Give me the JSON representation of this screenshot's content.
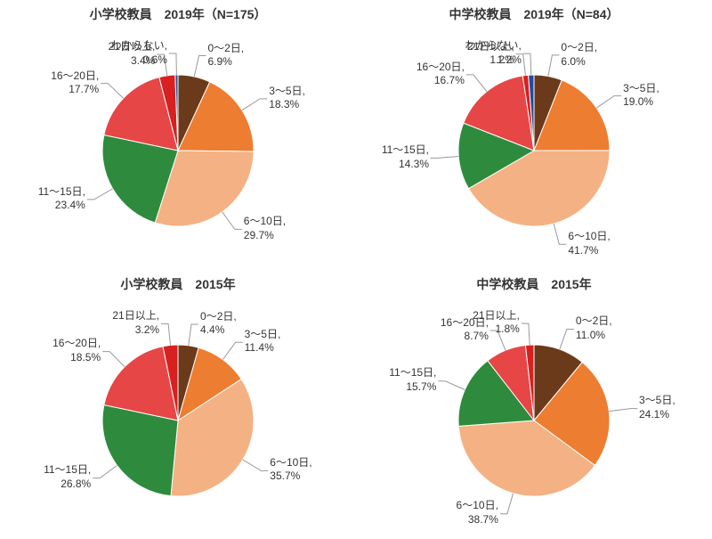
{
  "background_color": "#ffffff",
  "text_color": "#333333",
  "title_fontsize": 14,
  "label_fontsize": 12,
  "pie_radius": 85,
  "charts": [
    {
      "title": "小学校教員　2019年（N=175）",
      "type": "pie",
      "slices": [
        {
          "label": "0～2日",
          "value": 6.9,
          "value_str": "6.9%",
          "color": "#6b3a1a"
        },
        {
          "label": "3～5日",
          "value": 18.3,
          "value_str": "18.3%",
          "color": "#ed7d31"
        },
        {
          "label": "6～10日",
          "value": 29.7,
          "value_str": "29.7%",
          "color": "#f4b183"
        },
        {
          "label": "11～15日",
          "value": 23.4,
          "value_str": "23.4%",
          "color": "#2e8b3d"
        },
        {
          "label": "16～20日",
          "value": 17.7,
          "value_str": "17.7%",
          "color": "#e64646"
        },
        {
          "label": "21日以上",
          "value": 3.4,
          "value_str": "3.4%",
          "color": "#d82020"
        },
        {
          "label": "わからない",
          "value": 0.6,
          "value_str": "0.6%",
          "color": "#1f4e9e"
        }
      ]
    },
    {
      "title": "中学校教員　2019年（N=84）",
      "type": "pie",
      "slices": [
        {
          "label": "0～2日",
          "value": 6.0,
          "value_str": "6.0%",
          "color": "#6b3a1a"
        },
        {
          "label": "3～5日",
          "value": 19.0,
          "value_str": "19.0%",
          "color": "#ed7d31"
        },
        {
          "label": "6～10日",
          "value": 41.7,
          "value_str": "41.7%",
          "color": "#f4b183"
        },
        {
          "label": "11～15日",
          "value": 14.3,
          "value_str": "14.3%",
          "color": "#2e8b3d"
        },
        {
          "label": "16～20日",
          "value": 16.7,
          "value_str": "16.7%",
          "color": "#e64646"
        },
        {
          "label": "21日以上",
          "value": 1.2,
          "value_str": "1.2%",
          "color": "#d82020"
        },
        {
          "label": "わからない",
          "value": 1.2,
          "value_str": "1.2%",
          "color": "#1f4e9e"
        }
      ]
    },
    {
      "title": "小学校教員　2015年",
      "type": "pie",
      "slices": [
        {
          "label": "0～2日",
          "value": 4.4,
          "value_str": "4.4%",
          "color": "#6b3a1a"
        },
        {
          "label": "3～5日",
          "value": 11.4,
          "value_str": "11.4%",
          "color": "#ed7d31"
        },
        {
          "label": "6～10日",
          "value": 35.7,
          "value_str": "35.7%",
          "color": "#f4b183"
        },
        {
          "label": "11～15日",
          "value": 26.8,
          "value_str": "26.8%",
          "color": "#2e8b3d"
        },
        {
          "label": "16～20日",
          "value": 18.5,
          "value_str": "18.5%",
          "color": "#e64646"
        },
        {
          "label": "21日以上",
          "value": 3.2,
          "value_str": "3.2%",
          "color": "#d82020"
        }
      ]
    },
    {
      "title": "中学校教員　2015年",
      "type": "pie",
      "slices": [
        {
          "label": "0～2日",
          "value": 11.0,
          "value_str": "11.0%",
          "color": "#6b3a1a"
        },
        {
          "label": "3～5日",
          "value": 24.1,
          "value_str": "24.1%",
          "color": "#ed7d31"
        },
        {
          "label": "6～10日",
          "value": 38.7,
          "value_str": "38.7%",
          "color": "#f4b183"
        },
        {
          "label": "11～15日",
          "value": 15.7,
          "value_str": "15.7%",
          "color": "#2e8b3d"
        },
        {
          "label": "16～20日",
          "value": 8.7,
          "value_str": "8.7%",
          "color": "#e64646"
        },
        {
          "label": "21日以上",
          "value": 1.8,
          "value_str": "1.8%",
          "color": "#d82020"
        }
      ]
    }
  ]
}
